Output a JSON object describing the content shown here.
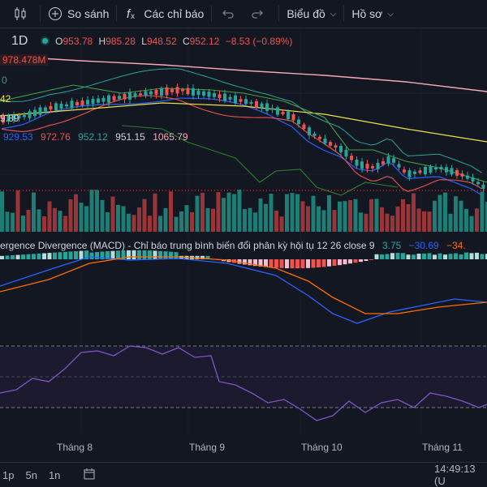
{
  "toolbar": {
    "compare": "So sánh",
    "indicators": "Các chỉ báo",
    "chart_menu": "Biểu đồ",
    "profile_menu": "Hồ sơ"
  },
  "legend": {
    "interval": "1D",
    "o_label": "O",
    "o_value": "953.78",
    "h_label": "H",
    "h_value": "985.28",
    "l_label": "L",
    "l_value": "948.52",
    "c_label": "C",
    "c_value": "952.12",
    "change": "−8.53 (−0.89%)"
  },
  "price_labels": {
    "volume_ma": "978.478M",
    "left_a": "0",
    "left_b": "42",
    "left_c": "9.89",
    "bb_1": "929.53",
    "bb_2": "972.76",
    "bb_3": "952.12",
    "bb_4": "951.15",
    "bb_5": "1065.79"
  },
  "macd": {
    "title": "ergence Divergence (MACD) - Chỉ báo trung bình biến đổi phân kỳ hội tụ 12 26 close 9",
    "v1": "3.75",
    "v2": "−30.69",
    "v3": "−34."
  },
  "x_axis": [
    "Tháng 8",
    "Tháng 9",
    "Tháng 10",
    "Tháng 11"
  ],
  "bottombar": {
    "r1": "1p",
    "r2": "5n",
    "r3": "1n",
    "time": "14:49:13 (U"
  },
  "colors": {
    "up": "#26a69a",
    "down": "#ef5350",
    "macd_line": "#2962ff",
    "signal_line": "#ff6d00",
    "rsi_line": "#7e57c2",
    "background": "#131722"
  },
  "icons": [
    "candles-icon",
    "plus-circle-icon",
    "function-icon",
    "undo-icon",
    "redo-icon",
    "calendar-icon"
  ]
}
